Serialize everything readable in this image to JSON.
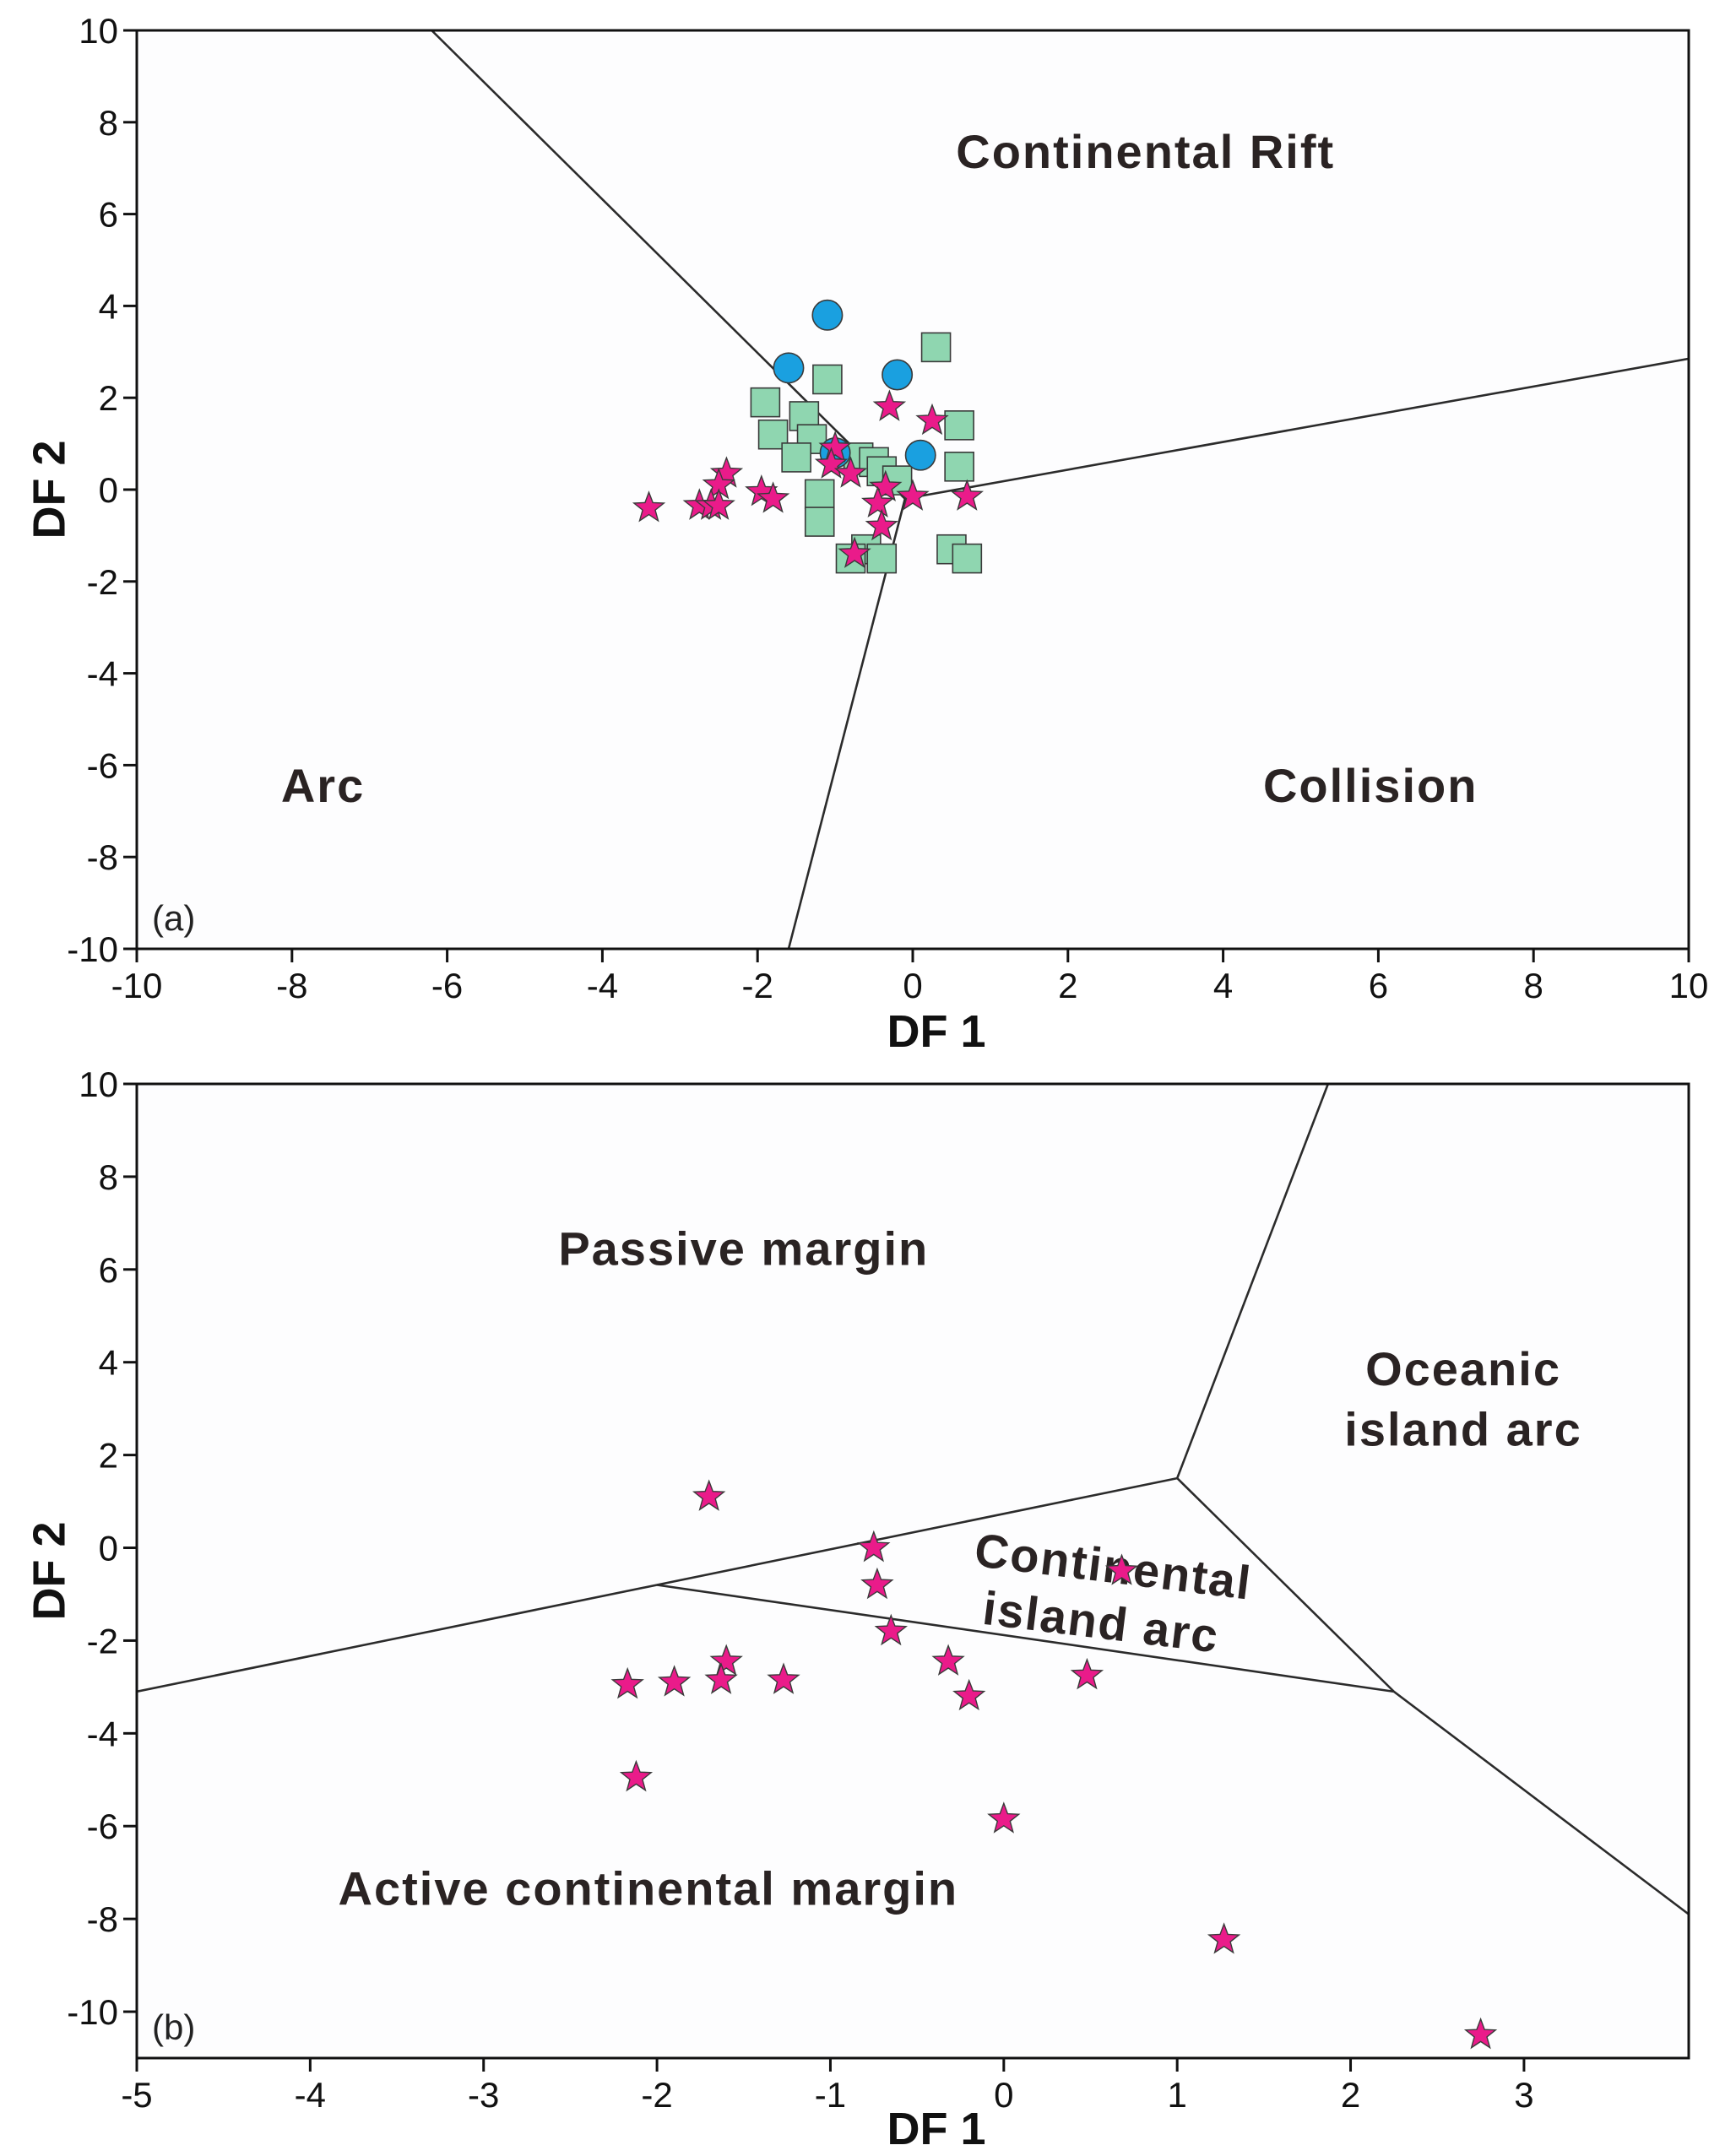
{
  "colors": {
    "background": "#fdfdfe",
    "frame": "#111111",
    "boundary": "#2b2b2b",
    "star_fill": "#ea1b8a",
    "square_fill": "#8fd6b0",
    "circle_fill": "#1aa0e0",
    "marker_stroke": "#3a3a3a"
  },
  "chart_data": [
    {
      "type": "scatter",
      "panel_label": "(a)",
      "xlabel": "DF 1",
      "ylabel": "DF 2",
      "xlim": [
        -10,
        10
      ],
      "ylim": [
        -10,
        10
      ],
      "xticks": [
        -10,
        -8,
        -6,
        -4,
        -2,
        0,
        2,
        4,
        6,
        8,
        10
      ],
      "yticks": [
        -10,
        -8,
        -6,
        -4,
        -2,
        0,
        2,
        4,
        6,
        8,
        10
      ],
      "boundaries": [
        [
          [
            -6.2,
            10
          ],
          [
            -0.1,
            -0.2
          ]
        ],
        [
          [
            -0.1,
            -0.2
          ],
          [
            10,
            2.85
          ]
        ],
        [
          [
            -0.1,
            -0.2
          ],
          [
            -1.6,
            -10
          ]
        ]
      ],
      "regions": [
        {
          "label": "Continental Rift",
          "x": 3,
          "y": 7
        },
        {
          "label": "Arc",
          "x": -7.6,
          "y": -6.8
        },
        {
          "label": "Collision",
          "x": 5.9,
          "y": -6.8
        }
      ],
      "series": [
        {
          "name": "squares",
          "marker": "square",
          "points": [
            [
              0.3,
              3.1
            ],
            [
              -1.1,
              2.4
            ],
            [
              -1.9,
              1.9
            ],
            [
              -1.4,
              1.6
            ],
            [
              -1.8,
              1.2
            ],
            [
              -1.3,
              1.1
            ],
            [
              -1.5,
              0.7
            ],
            [
              0.6,
              1.4
            ],
            [
              0.6,
              0.5
            ],
            [
              -0.7,
              0.7
            ],
            [
              -0.5,
              0.6
            ],
            [
              -0.4,
              0.4
            ],
            [
              -0.2,
              0.2
            ],
            [
              -1.2,
              -0.1
            ],
            [
              -1.2,
              -0.7
            ],
            [
              -0.6,
              -1.3
            ],
            [
              -0.4,
              -1.5
            ],
            [
              -0.8,
              -1.5
            ],
            [
              0.5,
              -1.3
            ],
            [
              0.7,
              -1.5
            ]
          ]
        },
        {
          "name": "circles",
          "marker": "circle",
          "points": [
            [
              -1.1,
              3.8
            ],
            [
              -1.6,
              2.65
            ],
            [
              -0.2,
              2.5
            ],
            [
              0.1,
              0.75
            ],
            [
              -1.0,
              0.8
            ]
          ]
        },
        {
          "name": "stars",
          "marker": "star",
          "points": [
            [
              -0.3,
              1.8
            ],
            [
              0.25,
              1.5
            ],
            [
              -1.0,
              0.9
            ],
            [
              -1.05,
              0.55
            ],
            [
              -0.8,
              0.35
            ],
            [
              -2.4,
              0.35
            ],
            [
              -2.5,
              0.1
            ],
            [
              -1.95,
              -0.05
            ],
            [
              -1.8,
              -0.2
            ],
            [
              -0.35,
              0.05
            ],
            [
              -0.45,
              -0.3
            ],
            [
              0.0,
              -0.15
            ],
            [
              0.7,
              -0.15
            ],
            [
              -2.75,
              -0.35
            ],
            [
              -2.6,
              -0.35
            ],
            [
              -2.5,
              -0.35
            ],
            [
              -3.4,
              -0.4
            ],
            [
              -0.4,
              -0.8
            ],
            [
              -0.75,
              -1.4
            ]
          ]
        }
      ]
    },
    {
      "type": "scatter",
      "panel_label": "(b)",
      "xlabel": "DF 1",
      "ylabel": "DF 2",
      "xlim": [
        -5,
        3.95
      ],
      "ylim": [
        -11,
        10
      ],
      "xticks": [
        -5,
        -4,
        -3,
        -2,
        -1,
        0,
        1,
        2,
        3
      ],
      "yticks": [
        -10,
        -8,
        -6,
        -4,
        -2,
        0,
        2,
        4,
        6,
        8,
        10
      ],
      "boundaries": [
        [
          [
            -5,
            -3.1
          ],
          [
            1.0,
            1.5
          ]
        ],
        [
          [
            1.0,
            1.5
          ],
          [
            1.87,
            10
          ]
        ],
        [
          [
            1.0,
            1.5
          ],
          [
            2.25,
            -3.1
          ]
        ],
        [
          [
            2.25,
            -3.1
          ],
          [
            3.95,
            -7.9
          ]
        ],
        [
          [
            -2.0,
            -0.8
          ],
          [
            2.25,
            -3.1
          ]
        ]
      ],
      "regions": [
        {
          "label": "Passive margin",
          "x": -1.5,
          "y": 6.1
        },
        {
          "label": "Oceanic",
          "x": 2.65,
          "y": 3.5
        },
        {
          "label": "island arc",
          "x": 2.65,
          "y": 2.2
        },
        {
          "label": "Continental",
          "x": 0.62,
          "y": -0.75,
          "rotate": 7
        },
        {
          "label": "island arc",
          "x": 0.55,
          "y": -1.95,
          "rotate": 7
        },
        {
          "label": "Active continental margin",
          "x": -2.05,
          "y": -7.7
        }
      ],
      "series": [
        {
          "name": "stars",
          "marker": "star",
          "points": [
            [
              -1.7,
              1.1
            ],
            [
              -0.75,
              0.0
            ],
            [
              -0.73,
              -0.8
            ],
            [
              -0.65,
              -1.8
            ],
            [
              -1.6,
              -2.45
            ],
            [
              -0.32,
              -2.45
            ],
            [
              0.48,
              -2.75
            ],
            [
              0.68,
              -0.5
            ],
            [
              -2.17,
              -2.95
            ],
            [
              -1.9,
              -2.9
            ],
            [
              -1.63,
              -2.85
            ],
            [
              -1.27,
              -2.85
            ],
            [
              -0.2,
              -3.2
            ],
            [
              -2.12,
              -4.95
            ],
            [
              0.0,
              -5.85
            ],
            [
              1.27,
              -8.45
            ],
            [
              2.75,
              -10.5
            ]
          ]
        }
      ]
    }
  ]
}
